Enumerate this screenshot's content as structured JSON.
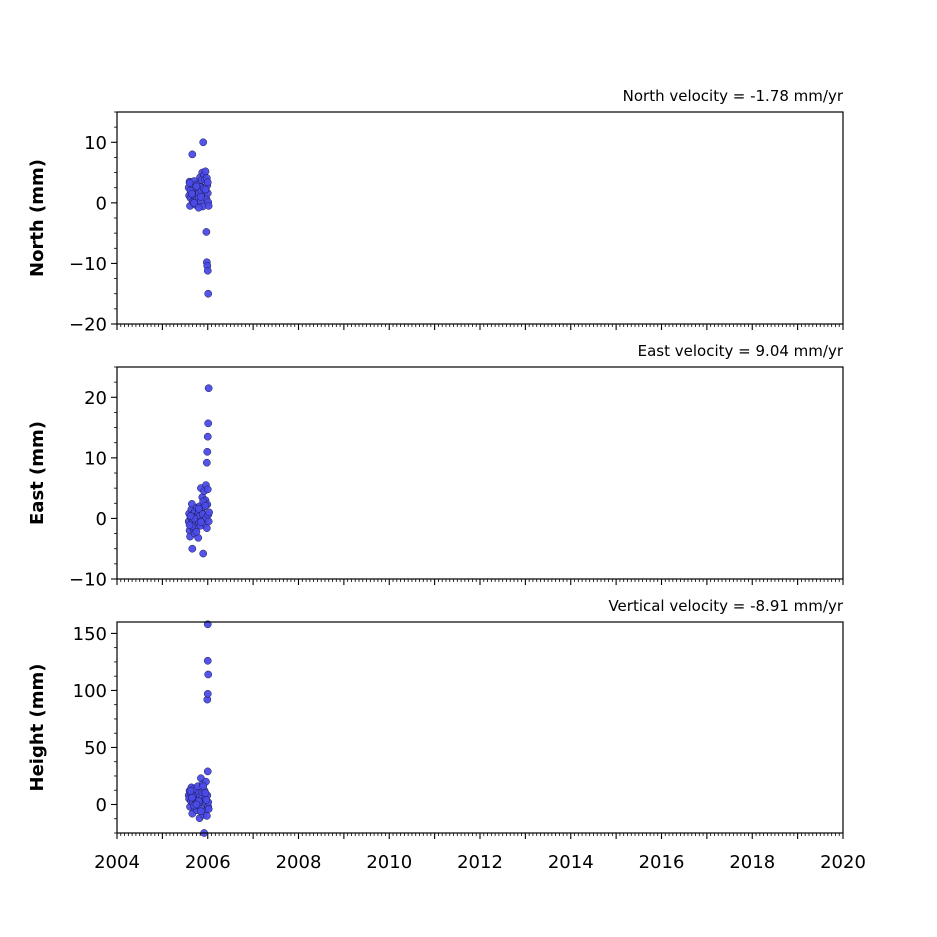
{
  "chart_data": [
    {
      "type": "scatter",
      "title": "North velocity = -1.78 mm/yr",
      "xlabel": "",
      "ylabel": "North (mm)",
      "xlim": [
        2004,
        2020
      ],
      "ylim": [
        -20,
        15
      ],
      "yticks": [
        -20,
        -10,
        0,
        10
      ],
      "ytick_labels": [
        "−20",
        "−10",
        "0",
        "10"
      ],
      "marker_color": "#4b4bea",
      "x": [
        2005.58,
        2005.59,
        2005.6,
        2005.61,
        2005.62,
        2005.63,
        2005.64,
        2005.65,
        2005.66,
        2005.67,
        2005.68,
        2005.69,
        2005.7,
        2005.71,
        2005.72,
        2005.73,
        2005.74,
        2005.75,
        2005.76,
        2005.77,
        2005.78,
        2005.79,
        2005.8,
        2005.81,
        2005.82,
        2005.83,
        2005.84,
        2005.85,
        2005.86,
        2005.87,
        2005.88,
        2005.89,
        2005.9,
        2005.91,
        2005.92,
        2005.93,
        2005.94,
        2005.95,
        2005.96,
        2005.97,
        2005.98,
        2005.99,
        2006.0,
        2006.01,
        2006.02,
        2005.97,
        2005.98,
        2005.99,
        2006.0,
        2006.01,
        2005.9,
        2006.0,
        2005.7,
        2005.6,
        2005.62,
        2005.75,
        2005.85,
        2005.95,
        2005.8,
        2005.65
      ],
      "y": [
        2.5,
        1.2,
        3.5,
        -0.5,
        0.8,
        2.0,
        3.2,
        1.5,
        8.0,
        0.2,
        1.8,
        2.8,
        3.6,
        0.5,
        -0.3,
        1.0,
        2.2,
        3.0,
        0.6,
        1.4,
        2.5,
        -0.2,
        0.9,
        1.7,
        3.1,
        4.2,
        2.6,
        0.3,
        1.9,
        3.8,
        5.0,
        -0.6,
        1.1,
        2.4,
        4.6,
        1.3,
        3.9,
        5.2,
        2.1,
        0.7,
        4.1,
        2.9,
        3.4,
        0.1,
        -0.5,
        -4.8,
        -9.8,
        -10.4,
        -11.2,
        -15.0,
        10.0,
        1.6,
        0.0,
        3.3,
        2.0,
        2.7,
        1.0,
        2.2,
        -0.8,
        1.5
      ]
    },
    {
      "type": "scatter",
      "title": "East velocity = 9.04 mm/yr",
      "xlabel": "",
      "ylabel": "East (mm)",
      "xlim": [
        2004,
        2020
      ],
      "ylim": [
        -10,
        25
      ],
      "yticks": [
        -10,
        0,
        10,
        20
      ],
      "ytick_labels": [
        "−10",
        "0",
        "10",
        "20"
      ],
      "marker_color": "#4b4bea",
      "x": [
        2005.58,
        2005.59,
        2005.6,
        2005.61,
        2005.62,
        2005.63,
        2005.64,
        2005.65,
        2005.66,
        2005.67,
        2005.68,
        2005.69,
        2005.7,
        2005.71,
        2005.72,
        2005.73,
        2005.74,
        2005.75,
        2005.76,
        2005.77,
        2005.78,
        2005.79,
        2005.8,
        2005.81,
        2005.82,
        2005.83,
        2005.84,
        2005.85,
        2005.86,
        2005.87,
        2005.88,
        2005.89,
        2005.9,
        2005.91,
        2005.92,
        2005.93,
        2005.94,
        2005.95,
        2005.96,
        2005.97,
        2005.98,
        2005.99,
        2006.0,
        2006.01,
        2006.02,
        2005.98,
        2005.99,
        2006.0,
        2006.01,
        2006.02,
        2006.03,
        2005.9,
        2005.65,
        2005.7,
        2005.75,
        2005.8,
        2005.85,
        2005.95,
        2005.62,
        2005.6
      ],
      "y": [
        -0.5,
        0.8,
        -2.0,
        -3.0,
        0.2,
        -1.0,
        1.5,
        2.4,
        -5.0,
        -0.3,
        0.6,
        -1.8,
        0.9,
        -2.5,
        1.2,
        -0.8,
        0.3,
        -1.5,
        1.8,
        -0.2,
        0.5,
        -3.2,
        1.0,
        -0.7,
        2.0,
        0.4,
        -1.2,
        5.0,
        1.3,
        -0.4,
        3.5,
        0.7,
        -5.8,
        1.9,
        4.5,
        2.6,
        -0.9,
        3.0,
        5.5,
        0.1,
        -1.6,
        2.3,
        4.8,
        0.6,
        -0.5,
        9.2,
        11.0,
        13.5,
        15.7,
        21.5,
        1.0,
        2.8,
        -1.3,
        0.0,
        -2.2,
        1.6,
        -0.6,
        2.1,
        0.4,
        -1.1
      ]
    },
    {
      "type": "scatter",
      "title": "Vertical velocity = -8.91 mm/yr",
      "xlabel": "",
      "ylabel": "Height (mm)",
      "xlim": [
        2004,
        2020
      ],
      "ylim": [
        -25,
        160
      ],
      "yticks": [
        0,
        50,
        100,
        150
      ],
      "ytick_labels": [
        "0",
        "50",
        "100",
        "150"
      ],
      "xticks": [
        2004,
        2006,
        2008,
        2010,
        2012,
        2014,
        2016,
        2018,
        2020
      ],
      "xtick_labels": [
        "2004",
        "2006",
        "2008",
        "2010",
        "2012",
        "2014",
        "2016",
        "2018",
        "2020"
      ],
      "marker_color": "#4b4bea",
      "x": [
        2005.58,
        2005.59,
        2005.6,
        2005.61,
        2005.62,
        2005.63,
        2005.64,
        2005.65,
        2005.66,
        2005.67,
        2005.68,
        2005.69,
        2005.7,
        2005.71,
        2005.72,
        2005.73,
        2005.74,
        2005.75,
        2005.76,
        2005.77,
        2005.78,
        2005.79,
        2005.8,
        2005.81,
        2005.82,
        2005.83,
        2005.84,
        2005.85,
        2005.86,
        2005.87,
        2005.88,
        2005.89,
        2005.9,
        2005.91,
        2005.92,
        2005.93,
        2005.94,
        2005.95,
        2005.96,
        2005.97,
        2005.98,
        2005.99,
        2006.0,
        2006.01,
        2006.02,
        2005.99,
        2006.0,
        2006.01,
        2006.0,
        2006.0,
        2006.01,
        2005.95,
        2005.7,
        2005.65,
        2005.8,
        2005.85,
        2005.62,
        2005.75,
        2005.9,
        2005.97
      ],
      "y": [
        8,
        5,
        12,
        -2,
        10,
        3,
        15,
        7,
        -8,
        2,
        11,
        6,
        14,
        -3,
        9,
        4,
        13,
        1,
        -5,
        8,
        16,
        0,
        5,
        10,
        -12,
        7,
        2,
        23,
        -4,
        6,
        11,
        18,
        -9,
        3,
        -25,
        12,
        -6,
        5,
        20,
        1,
        -10,
        8,
        29,
        -2,
        -4,
        92,
        97,
        114,
        126,
        158,
        2,
        10,
        -1,
        6,
        3,
        -6,
        12,
        0,
        16,
        4
      ]
    }
  ]
}
